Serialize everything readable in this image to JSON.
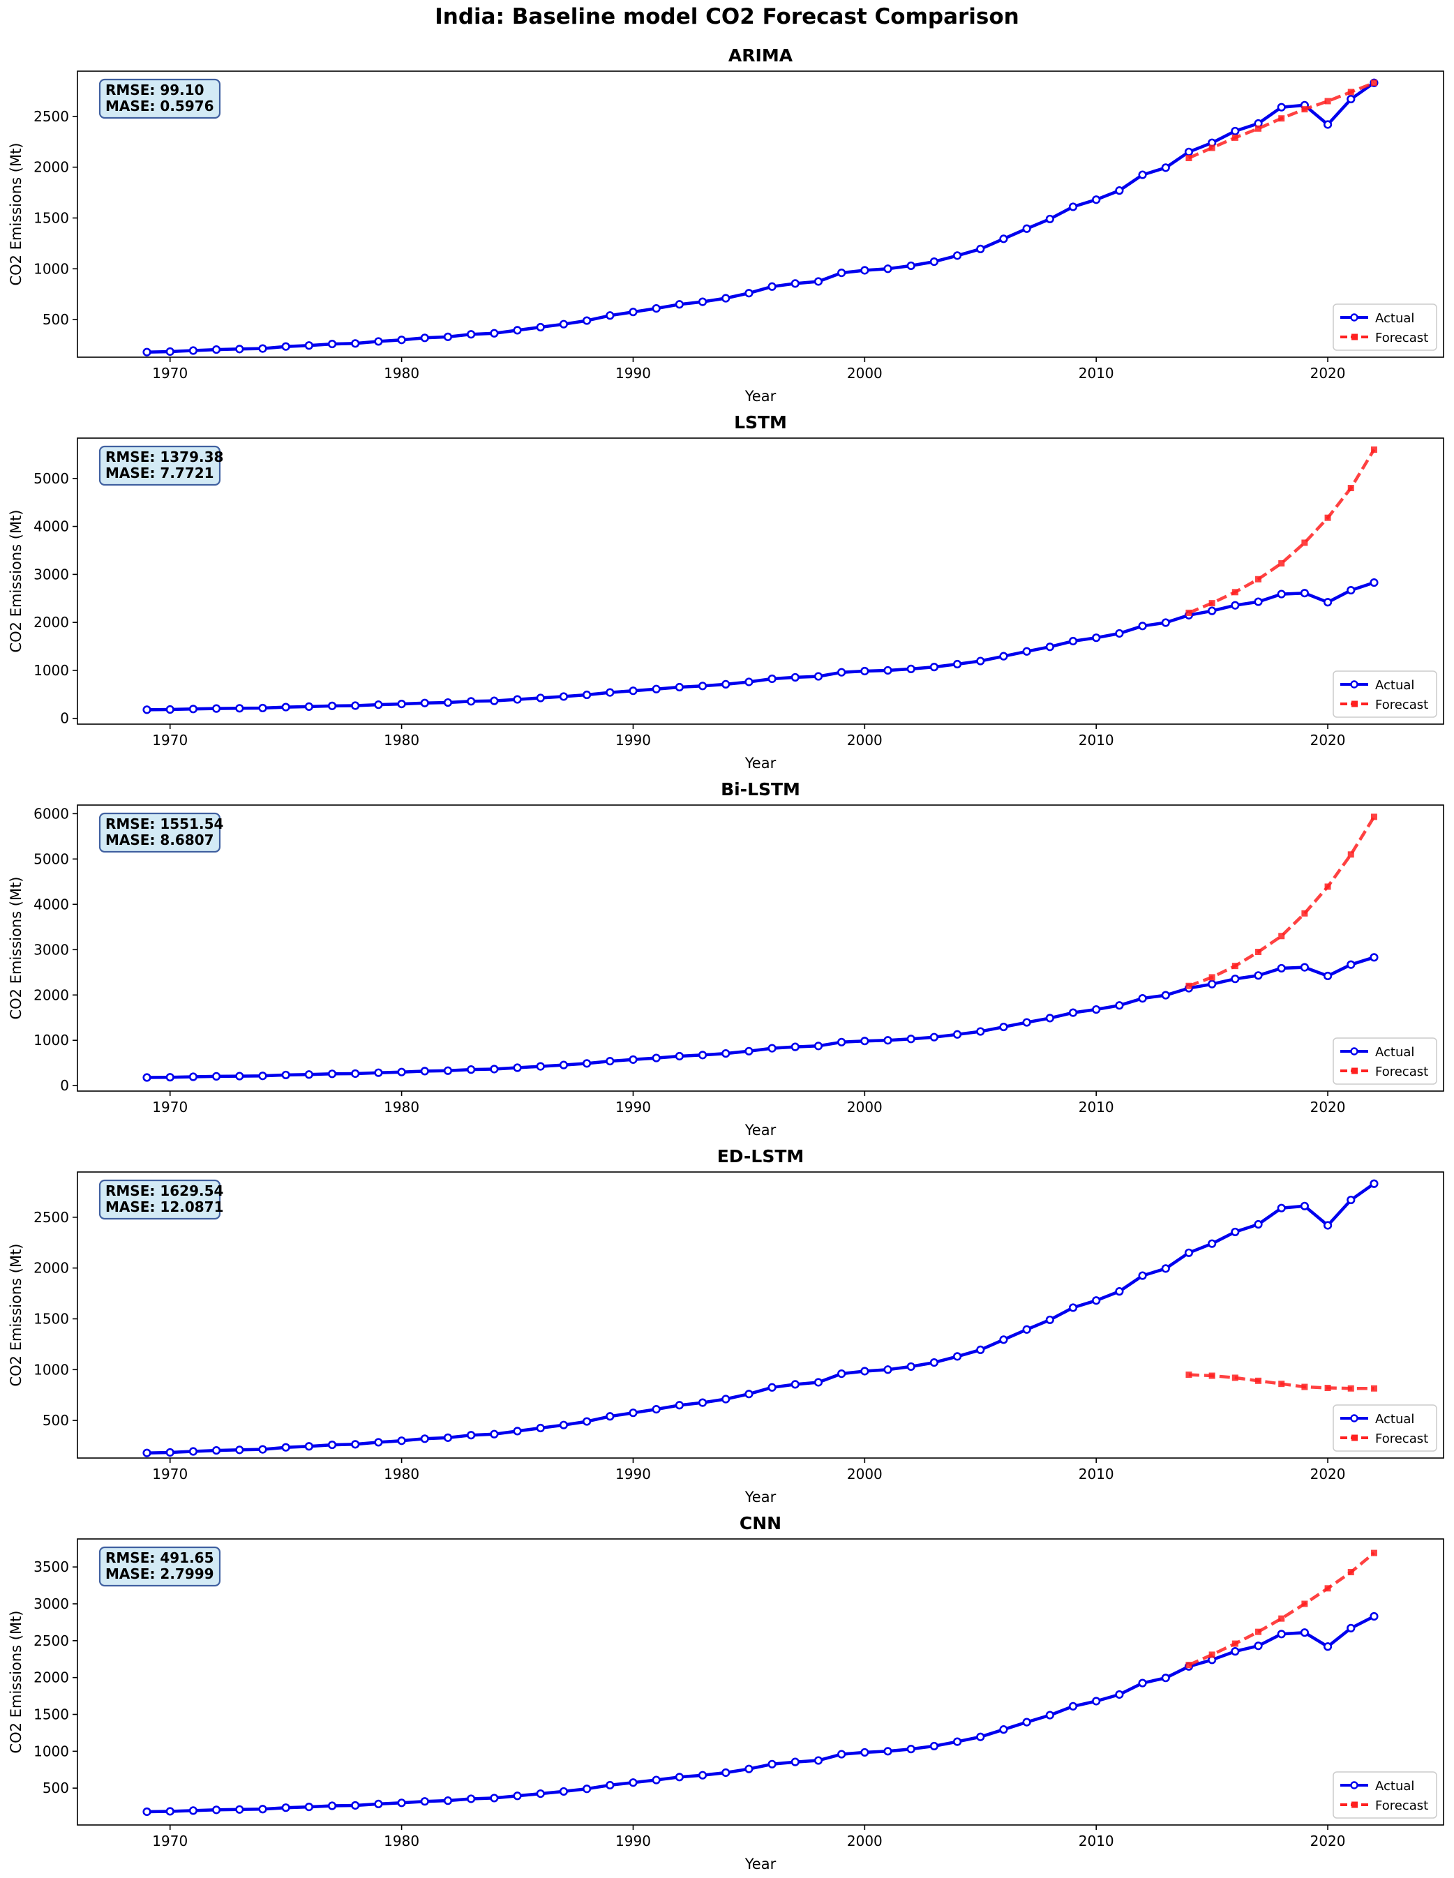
{
  "figure_title": "India: Baseline model CO2 Forecast Comparison",
  "colors": {
    "actual": "#0000ee",
    "forecast": "#ff2020",
    "metrics_box_fill": "#d3eaf5",
    "metrics_box_edge": "#4060a0"
  },
  "chart_data": [
    {
      "type": "line",
      "title": "ARIMA",
      "xlabel": "Year",
      "ylabel": "CO2 Emissions (Mt)",
      "xlim": [
        1966,
        2025
      ],
      "ylim": [
        130,
        2945
      ],
      "xticks": [
        1970,
        1980,
        1990,
        2000,
        2010,
        2020
      ],
      "yticks": [
        500,
        1000,
        1500,
        2000,
        2500
      ],
      "metrics": [
        "RMSE: 99.10",
        "MASE: 0.5976"
      ],
      "legend": {
        "placement": "bottom-right",
        "entries": [
          "Actual",
          "Forecast"
        ]
      },
      "series": [
        {
          "name": "Actual",
          "style": "solid-circle",
          "x_start": 1969,
          "values": [
            180,
            185,
            195,
            205,
            210,
            215,
            235,
            245,
            260,
            265,
            285,
            300,
            320,
            330,
            355,
            365,
            395,
            425,
            455,
            490,
            540,
            575,
            610,
            650,
            675,
            710,
            760,
            825,
            855,
            875,
            960,
            985,
            1000,
            1030,
            1070,
            1130,
            1195,
            1295,
            1395,
            1490,
            1610,
            1680,
            1770,
            1925,
            1995,
            2150,
            2240,
            2355,
            2430,
            2590,
            2610,
            2420,
            2670,
            2830
          ]
        },
        {
          "name": "Forecast",
          "style": "dashed-square",
          "x_start": 2014,
          "values": [
            2090,
            2190,
            2290,
            2380,
            2480,
            2570,
            2650,
            2740,
            2830
          ]
        }
      ]
    },
    {
      "type": "line",
      "title": "LSTM",
      "xlabel": "Year",
      "ylabel": "CO2 Emissions (Mt)",
      "xlim": [
        1966,
        2025
      ],
      "ylim": [
        -120,
        5840
      ],
      "xticks": [
        1970,
        1980,
        1990,
        2000,
        2010,
        2020
      ],
      "yticks": [
        0,
        1000,
        2000,
        3000,
        4000,
        5000
      ],
      "metrics": [
        "RMSE: 1379.38",
        "MASE: 7.7721"
      ],
      "legend": {
        "placement": "bottom-right",
        "entries": [
          "Actual",
          "Forecast"
        ]
      },
      "series": [
        {
          "name": "Actual",
          "style": "solid-circle",
          "x_start": 1969,
          "values": [
            180,
            185,
            195,
            205,
            210,
            215,
            235,
            245,
            260,
            265,
            285,
            300,
            320,
            330,
            355,
            365,
            395,
            425,
            455,
            490,
            540,
            575,
            610,
            650,
            675,
            710,
            760,
            825,
            855,
            875,
            960,
            985,
            1000,
            1030,
            1070,
            1130,
            1195,
            1295,
            1395,
            1490,
            1610,
            1680,
            1770,
            1925,
            1995,
            2150,
            2240,
            2355,
            2430,
            2590,
            2610,
            2420,
            2670,
            2830
          ]
        },
        {
          "name": "Forecast",
          "style": "dashed-square",
          "x_start": 2014,
          "values": [
            2200,
            2400,
            2630,
            2900,
            3230,
            3660,
            4180,
            4800,
            5600
          ]
        }
      ]
    },
    {
      "type": "line",
      "title": "Bi-LSTM",
      "xlabel": "Year",
      "ylabel": "CO2 Emissions (Mt)",
      "xlim": [
        1966,
        2025
      ],
      "ylim": [
        -120,
        6190
      ],
      "xticks": [
        1970,
        1980,
        1990,
        2000,
        2010,
        2020
      ],
      "yticks": [
        0,
        1000,
        2000,
        3000,
        4000,
        5000,
        6000
      ],
      "metrics": [
        "RMSE: 1551.54",
        "MASE: 8.6807"
      ],
      "legend": {
        "placement": "bottom-right",
        "entries": [
          "Actual",
          "Forecast"
        ]
      },
      "series": [
        {
          "name": "Actual",
          "style": "solid-circle",
          "x_start": 1969,
          "values": [
            180,
            185,
            195,
            205,
            210,
            215,
            235,
            245,
            260,
            265,
            285,
            300,
            320,
            330,
            355,
            365,
            395,
            425,
            455,
            490,
            540,
            575,
            610,
            650,
            675,
            710,
            760,
            825,
            855,
            875,
            960,
            985,
            1000,
            1030,
            1070,
            1130,
            1195,
            1295,
            1395,
            1490,
            1610,
            1680,
            1770,
            1925,
            1995,
            2150,
            2240,
            2355,
            2430,
            2590,
            2610,
            2420,
            2670,
            2830
          ]
        },
        {
          "name": "Forecast",
          "style": "dashed-square",
          "x_start": 2014,
          "values": [
            2200,
            2390,
            2640,
            2950,
            3300,
            3800,
            4390,
            5100,
            5930
          ]
        }
      ]
    },
    {
      "type": "line",
      "title": "ED-LSTM",
      "xlabel": "Year",
      "ylabel": "CO2 Emissions (Mt)",
      "xlim": [
        1966,
        2025
      ],
      "ylim": [
        130,
        2945
      ],
      "xticks": [
        1970,
        1980,
        1990,
        2000,
        2010,
        2020
      ],
      "yticks": [
        500,
        1000,
        1500,
        2000,
        2500
      ],
      "metrics": [
        "RMSE: 1629.54",
        "MASE: 12.0871"
      ],
      "legend": {
        "placement": "bottom-right",
        "entries": [
          "Actual",
          "Forecast"
        ]
      },
      "series": [
        {
          "name": "Actual",
          "style": "solid-circle",
          "x_start": 1969,
          "values": [
            180,
            185,
            195,
            205,
            210,
            215,
            235,
            245,
            260,
            265,
            285,
            300,
            320,
            330,
            355,
            365,
            395,
            425,
            455,
            490,
            540,
            575,
            610,
            650,
            675,
            710,
            760,
            825,
            855,
            875,
            960,
            985,
            1000,
            1030,
            1070,
            1130,
            1195,
            1295,
            1395,
            1490,
            1610,
            1680,
            1770,
            1925,
            1995,
            2150,
            2240,
            2355,
            2430,
            2590,
            2610,
            2420,
            2670,
            2830
          ]
        },
        {
          "name": "Forecast",
          "style": "dashed-square",
          "x_start": 2014,
          "values": [
            950,
            940,
            920,
            890,
            860,
            830,
            820,
            815,
            815
          ]
        }
      ]
    },
    {
      "type": "line",
      "title": "CNN",
      "xlabel": "Year",
      "ylabel": "CO2 Emissions (Mt)",
      "xlim": [
        1966,
        2025
      ],
      "ylim": [
        0,
        3880
      ],
      "xticks": [
        1970,
        1980,
        1990,
        2000,
        2010,
        2020
      ],
      "yticks": [
        500,
        1000,
        1500,
        2000,
        2500,
        3000,
        3500
      ],
      "metrics": [
        "RMSE: 491.65",
        "MASE: 2.7999"
      ],
      "legend": {
        "placement": "bottom-right",
        "entries": [
          "Actual",
          "Forecast"
        ]
      },
      "series": [
        {
          "name": "Actual",
          "style": "solid-circle",
          "x_start": 1969,
          "values": [
            180,
            185,
            195,
            205,
            210,
            215,
            235,
            245,
            260,
            265,
            285,
            300,
            320,
            330,
            355,
            365,
            395,
            425,
            455,
            490,
            540,
            575,
            610,
            650,
            675,
            710,
            760,
            825,
            855,
            875,
            960,
            985,
            1000,
            1030,
            1070,
            1130,
            1195,
            1295,
            1395,
            1490,
            1610,
            1680,
            1770,
            1925,
            1995,
            2150,
            2240,
            2355,
            2430,
            2590,
            2610,
            2420,
            2670,
            2830
          ]
        },
        {
          "name": "Forecast",
          "style": "dashed-square",
          "x_start": 2014,
          "values": [
            2170,
            2310,
            2460,
            2620,
            2800,
            3000,
            3210,
            3430,
            3690
          ]
        }
      ]
    }
  ]
}
